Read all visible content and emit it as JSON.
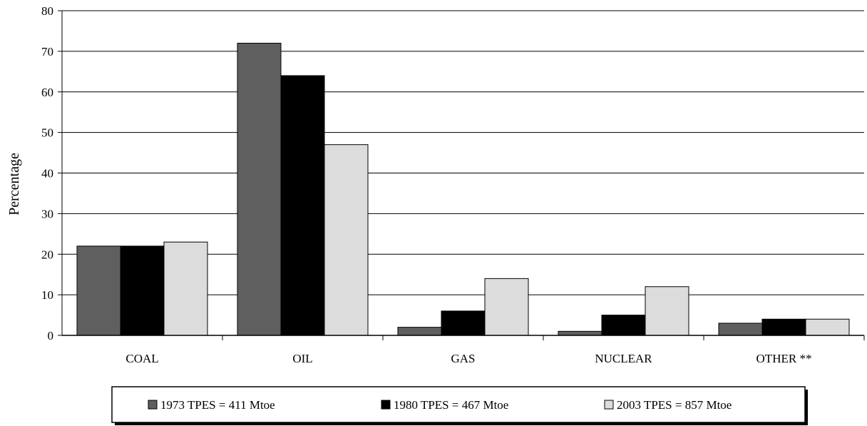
{
  "chart_data": {
    "type": "bar",
    "ylabel": "Percentage",
    "xlabel": "",
    "ylim": [
      0,
      80
    ],
    "yticks": [
      0,
      10,
      20,
      30,
      40,
      50,
      60,
      70,
      80
    ],
    "grid": true,
    "legend_position": "bottom",
    "categories": [
      "COAL",
      "OIL",
      "GAS",
      "NUCLEAR",
      "OTHER **"
    ],
    "series": [
      {
        "name": "1973 TPES = 411 Mtoe",
        "color": "#5f5f5f",
        "values": [
          22,
          72,
          2,
          1,
          3
        ]
      },
      {
        "name": "1980 TPES = 467 Mtoe",
        "color": "#000000",
        "values": [
          22,
          64,
          6,
          5,
          4
        ]
      },
      {
        "name": "2003 TPES = 857 Mtoe",
        "color": "#dcdcdc",
        "values": [
          23,
          47,
          14,
          12,
          4
        ]
      }
    ]
  }
}
